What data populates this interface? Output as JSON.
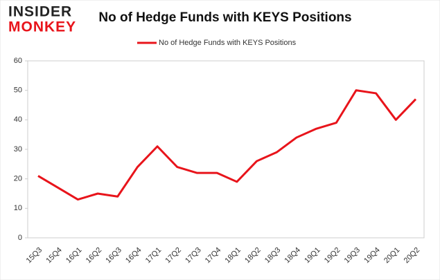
{
  "logo": {
    "line1": "INSIDER",
    "line2": "MONKEY"
  },
  "chart_data": {
    "type": "line",
    "title": "No of Hedge Funds with KEYS Positions",
    "categories": [
      "15Q3",
      "15Q4",
      "16Q1",
      "16Q2",
      "16Q3",
      "16Q4",
      "17Q1",
      "17Q2",
      "17Q3",
      "17Q4",
      "18Q1",
      "18Q2",
      "18Q3",
      "18Q4",
      "19Q1",
      "19Q2",
      "19Q3",
      "19Q4",
      "20Q1",
      "20Q2"
    ],
    "series": [
      {
        "name": "No of Hedge Funds with KEYS Positions",
        "color": "#e8141b",
        "values": [
          21,
          17,
          13,
          15,
          14,
          24,
          31,
          24,
          22,
          22,
          19,
          26,
          29,
          34,
          37,
          39,
          50,
          49,
          40,
          47
        ]
      }
    ],
    "ylim": [
      0,
      60
    ],
    "yticks": [
      0,
      10,
      20,
      30,
      40,
      50,
      60
    ],
    "grid": false,
    "legend": "top"
  }
}
